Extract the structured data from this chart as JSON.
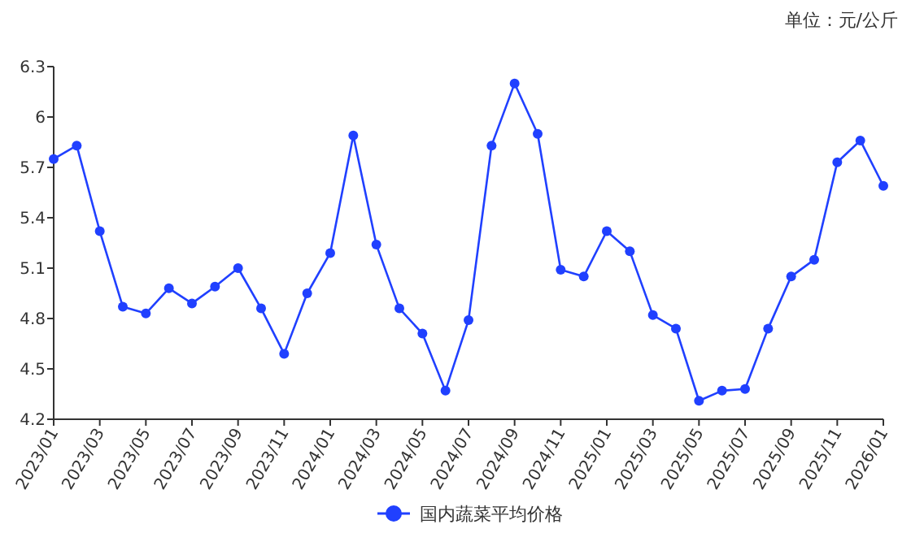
{
  "chart_data": {
    "type": "line",
    "annotations": [
      "单位：元/公斤"
    ],
    "categories": [
      "2023/01",
      null,
      "2023/03",
      null,
      "2023/05",
      null,
      "2023/07",
      null,
      "2023/09",
      null,
      "2023/11",
      null,
      "2024/01",
      null,
      "2024/03",
      null,
      "2024/05",
      null,
      "2024/07",
      null,
      "2024/09",
      null,
      "2024/11",
      null,
      "2025/01",
      null,
      "2025/03",
      null,
      "2025/05",
      null,
      "2025/07",
      null,
      "2025/09",
      null,
      "2025/11",
      null,
      "2026/01"
    ],
    "series": [
      {
        "name": "国内蔬菜平均价格",
        "color": "#2040ff",
        "values": [
          5.75,
          5.83,
          5.32,
          4.87,
          4.83,
          4.98,
          4.89,
          4.99,
          5.1,
          4.86,
          4.59,
          4.95,
          5.19,
          5.89,
          5.24,
          4.86,
          4.71,
          4.37,
          4.79,
          5.83,
          6.2,
          5.9,
          5.09,
          5.05,
          5.32,
          5.2,
          4.82,
          4.74,
          4.31,
          4.37,
          4.38,
          4.74,
          5.05,
          5.15,
          5.73,
          5.86,
          5.59
        ]
      }
    ],
    "ylim": [
      4.2,
      6.3
    ],
    "yticks": [
      4.2,
      4.5,
      4.8,
      5.1,
      5.4,
      5.7,
      6,
      6.3
    ],
    "marker": "circle",
    "legend": "bottom"
  }
}
